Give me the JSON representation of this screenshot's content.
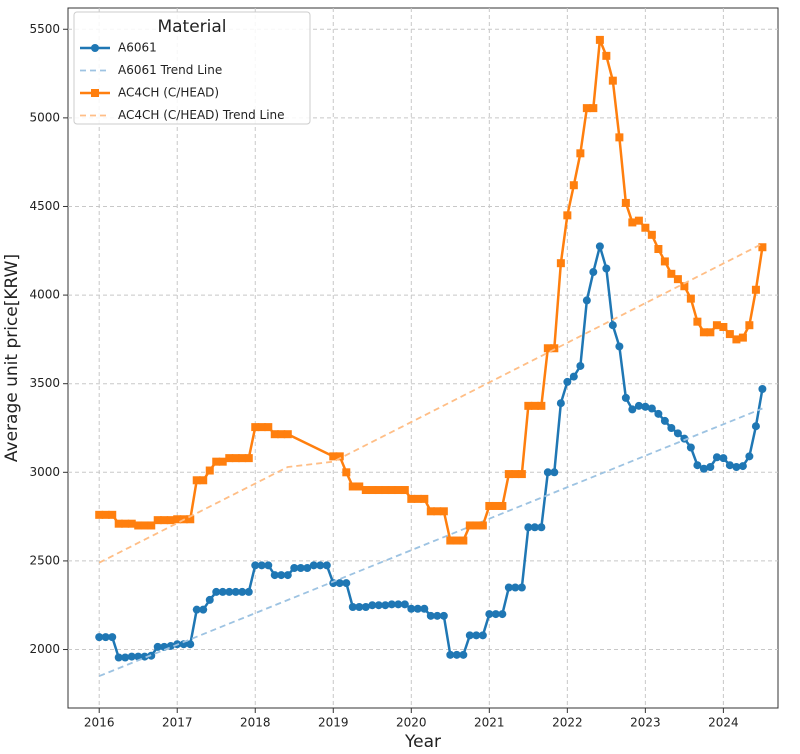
{
  "chart_data": {
    "type": "line",
    "xlabel": "Year",
    "ylabel": "Average unit price[KRW]",
    "legend_title": "Material",
    "legend": "upper left",
    "grid": true,
    "xlim": [
      2015.6,
      2024.7
    ],
    "xticks": [
      2016,
      2017,
      2018,
      2019,
      2020,
      2021,
      2022,
      2023,
      2024
    ],
    "ylim": [
      1670,
      5620
    ],
    "yticks": [
      2000,
      2500,
      3000,
      3500,
      4000,
      4500,
      5000,
      5500
    ],
    "series": [
      {
        "name": "A6061",
        "color": "#1f77b4",
        "marker": "circle",
        "dash": false,
        "x": [
          2016,
          2016.083,
          2016.167,
          2016.25,
          2016.333,
          2016.417,
          2016.5,
          2016.583,
          2016.667,
          2016.75,
          2016.833,
          2016.917,
          2017,
          2017.083,
          2017.167,
          2017.25,
          2017.333,
          2017.417,
          2017.5,
          2017.583,
          2017.667,
          2017.75,
          2017.833,
          2017.917,
          2018,
          2018.083,
          2018.167,
          2018.25,
          2018.333,
          2018.417,
          2018.5,
          2018.583,
          2018.667,
          2018.75,
          2018.833,
          2018.917,
          2019,
          2019.083,
          2019.167,
          2019.25,
          2019.333,
          2019.417,
          2019.5,
          2019.583,
          2019.667,
          2019.75,
          2019.833,
          2019.917,
          2020,
          2020.083,
          2020.167,
          2020.25,
          2020.333,
          2020.417,
          2020.5,
          2020.583,
          2020.667,
          2020.75,
          2020.833,
          2020.917,
          2021,
          2021.083,
          2021.167,
          2021.25,
          2021.333,
          2021.417,
          2021.5,
          2021.583,
          2021.667,
          2021.75,
          2021.833,
          2021.917,
          2022,
          2022.083,
          2022.167,
          2022.25,
          2022.333,
          2022.417,
          2022.5,
          2022.583,
          2022.667,
          2022.75,
          2022.833,
          2022.917,
          2023,
          2023.083,
          2023.167,
          2023.25,
          2023.333,
          2023.417,
          2023.5,
          2023.583,
          2023.667,
          2023.75,
          2023.833,
          2023.917,
          2024,
          2024.083,
          2024.167,
          2024.25,
          2024.333,
          2024.417,
          2024.5
        ],
        "values": [
          2070,
          2070,
          2070,
          1955,
          1955,
          1960,
          1960,
          1960,
          1965,
          2015,
          2015,
          2020,
          2030,
          2030,
          2030,
          2225,
          2225,
          2280,
          2325,
          2325,
          2325,
          2325,
          2325,
          2325,
          2475,
          2475,
          2475,
          2420,
          2420,
          2420,
          2460,
          2460,
          2460,
          2475,
          2475,
          2475,
          2375,
          2375,
          2375,
          2240,
          2240,
          2240,
          2250,
          2250,
          2250,
          2255,
          2255,
          2255,
          2230,
          2230,
          2230,
          2190,
          2190,
          2190,
          1970,
          1970,
          1970,
          2080,
          2080,
          2080,
          2200,
          2200,
          2200,
          2350,
          2350,
          2350,
          2690,
          2690,
          2690,
          3000,
          3000,
          3390,
          3510,
          3540,
          3600,
          3970,
          4130,
          4275,
          4150,
          3830,
          3710,
          3420,
          3355,
          3375,
          3370,
          3360,
          3330,
          3290,
          3250,
          3220,
          3190,
          3140,
          3040,
          3020,
          3030,
          3085,
          3080,
          3040,
          3030,
          3035,
          3090,
          3260,
          3470
        ]
      },
      {
        "name": "A6061 Trend Line",
        "color": "#9dc3e2",
        "marker": "none",
        "dash": true,
        "x": [
          2016,
          2024.5
        ],
        "values": [
          1850,
          3360
        ]
      },
      {
        "name": "AC4CH (C/HEAD)",
        "color": "#ff7f0e",
        "marker": "square",
        "dash": false,
        "x": [
          2016,
          2016.083,
          2016.167,
          2016.25,
          2016.333,
          2016.417,
          2016.5,
          2016.583,
          2016.667,
          2016.75,
          2016.833,
          2016.917,
          2017,
          2017.083,
          2017.167,
          2017.25,
          2017.333,
          2017.417,
          2017.5,
          2017.583,
          2017.667,
          2017.75,
          2017.833,
          2017.917,
          2018,
          2018.083,
          2018.167,
          2018.25,
          2018.333,
          2018.417,
          2019,
          2019.083,
          2019.167,
          2019.25,
          2019.333,
          2019.417,
          2019.5,
          2019.583,
          2019.667,
          2019.75,
          2019.833,
          2019.917,
          2020,
          2020.083,
          2020.167,
          2020.25,
          2020.333,
          2020.417,
          2020.5,
          2020.583,
          2020.667,
          2020.75,
          2020.833,
          2020.917,
          2021,
          2021.083,
          2021.167,
          2021.25,
          2021.333,
          2021.417,
          2021.5,
          2021.583,
          2021.667,
          2021.75,
          2021.833,
          2021.917,
          2022,
          2022.083,
          2022.167,
          2022.25,
          2022.333,
          2022.417,
          2022.5,
          2022.583,
          2022.667,
          2022.75,
          2022.833,
          2022.917,
          2023,
          2023.083,
          2023.167,
          2023.25,
          2023.333,
          2023.417,
          2023.5,
          2023.583,
          2023.667,
          2023.75,
          2023.833,
          2023.917,
          2024,
          2024.083,
          2024.167,
          2024.25,
          2024.333,
          2024.417,
          2024.5
        ],
        "values": [
          2760,
          2760,
          2760,
          2710,
          2710,
          2710,
          2700,
          2700,
          2700,
          2730,
          2730,
          2730,
          2735,
          2735,
          2735,
          2955,
          2955,
          3010,
          3060,
          3060,
          3080,
          3080,
          3080,
          3080,
          3255,
          3255,
          3255,
          3215,
          3215,
          3215,
          3090,
          3090,
          3000,
          2920,
          2920,
          2900,
          2900,
          2900,
          2900,
          2900,
          2900,
          2900,
          2850,
          2850,
          2850,
          2780,
          2780,
          2780,
          2615,
          2615,
          2615,
          2700,
          2700,
          2700,
          2810,
          2810,
          2810,
          2990,
          2990,
          2990,
          3375,
          3375,
          3375,
          3700,
          3700,
          4180,
          4450,
          4620,
          4800,
          5055,
          5055,
          5440,
          5350,
          5210,
          4890,
          4520,
          4410,
          4420,
          4380,
          4340,
          4260,
          4190,
          4120,
          4090,
          4050,
          3980,
          3850,
          3790,
          3790,
          3830,
          3820,
          3780,
          3750,
          3760,
          3830,
          4030,
          4270
        ]
      },
      {
        "name": "AC4CH (C/HEAD) Trend Line",
        "color": "#ffbe86",
        "marker": "none",
        "dash": true,
        "x": [
          2016,
          2018.417,
          2019,
          2024.5
        ],
        "values": [
          2490,
          3030,
          3060,
          4290
        ]
      }
    ]
  }
}
